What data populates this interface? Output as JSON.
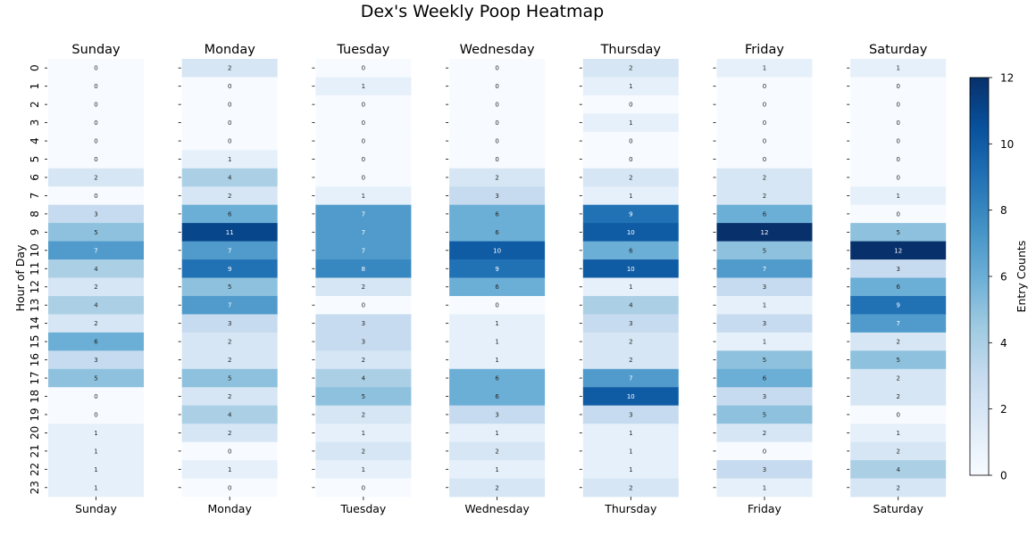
{
  "chart_data": {
    "type": "heatmap",
    "title": "Dex's Weekly Poop Heatmap",
    "ylabel": "Hour of Day",
    "colorbar_label": "Entry Counts",
    "colorbar_ticks": [
      0,
      2,
      4,
      6,
      8,
      10,
      12
    ],
    "vmin": 0,
    "vmax": 12,
    "colormap": "Blues",
    "hours": [
      "0",
      "1",
      "2",
      "3",
      "4",
      "5",
      "6",
      "7",
      "8",
      "9",
      "10",
      "11",
      "12",
      "13",
      "14",
      "15",
      "16",
      "17",
      "18",
      "19",
      "20",
      "21",
      "22",
      "23"
    ],
    "days": [
      {
        "name": "Sunday",
        "values": [
          0,
          0,
          0,
          0,
          0,
          0,
          2,
          0,
          3,
          5,
          7,
          4,
          2,
          4,
          2,
          6,
          3,
          5,
          0,
          0,
          1,
          1,
          1,
          1
        ]
      },
      {
        "name": "Monday",
        "values": [
          2,
          0,
          0,
          0,
          0,
          1,
          4,
          2,
          6,
          11,
          7,
          9,
          5,
          7,
          3,
          2,
          2,
          5,
          2,
          4,
          2,
          0,
          1,
          0
        ]
      },
      {
        "name": "Tuesday",
        "values": [
          0,
          1,
          0,
          0,
          0,
          0,
          0,
          1,
          7,
          7,
          7,
          8,
          2,
          0,
          3,
          3,
          2,
          4,
          5,
          2,
          1,
          2,
          1,
          0
        ]
      },
      {
        "name": "Wednesday",
        "values": [
          0,
          0,
          0,
          0,
          0,
          0,
          2,
          3,
          6,
          6,
          10,
          9,
          6,
          0,
          1,
          1,
          1,
          6,
          6,
          3,
          1,
          2,
          1,
          2
        ]
      },
      {
        "name": "Thursday",
        "values": [
          2,
          1,
          0,
          1,
          0,
          0,
          2,
          1,
          9,
          10,
          6,
          10,
          1,
          4,
          3,
          2,
          2,
          7,
          10,
          3,
          1,
          1,
          1,
          2
        ]
      },
      {
        "name": "Friday",
        "values": [
          1,
          0,
          0,
          0,
          0,
          0,
          2,
          2,
          6,
          12,
          5,
          7,
          3,
          1,
          3,
          1,
          5,
          6,
          3,
          5,
          2,
          0,
          3,
          1
        ]
      },
      {
        "name": "Saturday",
        "values": [
          1,
          0,
          0,
          0,
          0,
          0,
          0,
          1,
          0,
          5,
          12,
          3,
          6,
          9,
          7,
          2,
          5,
          2,
          2,
          0,
          1,
          2,
          4,
          2
        ]
      }
    ]
  }
}
